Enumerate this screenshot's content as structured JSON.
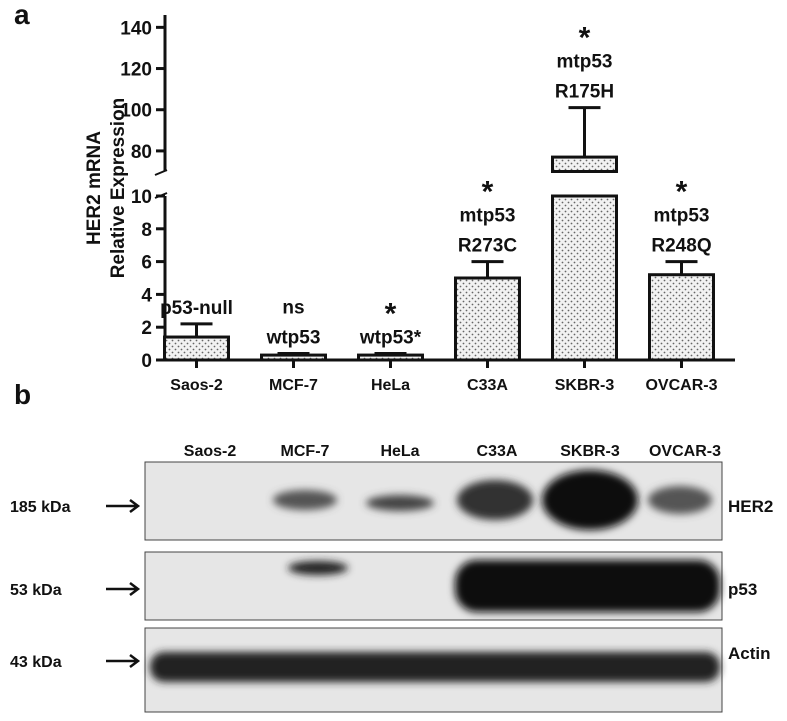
{
  "chart_data": {
    "type": "bar",
    "panel": "a",
    "ylabel": [
      "HER2 mRNA",
      "Relative Expression"
    ],
    "categories": [
      "Saos-2",
      "MCF-7",
      "HeLa",
      "C33A",
      "SKBR-3",
      "OVCAR-3"
    ],
    "values": [
      1.4,
      0.3,
      0.3,
      5.0,
      77,
      5.2
    ],
    "errors": [
      0.8,
      0.1,
      0.1,
      1.0,
      24,
      0.8
    ],
    "annotations": [
      [
        "p53-null"
      ],
      [
        "ns",
        "wtp53"
      ],
      [
        "*",
        "wtp53*"
      ],
      [
        "*",
        "mtp53",
        "R273C"
      ],
      [
        "*",
        "mtp53",
        "R175H"
      ],
      [
        "*",
        "mtp53",
        "R248Q"
      ]
    ],
    "y_segments": [
      {
        "ylim": [
          0,
          10
        ],
        "yticks": [
          0,
          2,
          4,
          6,
          8,
          10
        ]
      },
      {
        "ylim": [
          70,
          146
        ],
        "yticks": [
          80,
          100,
          120,
          140
        ]
      }
    ]
  },
  "blot": {
    "panel": "b",
    "lanes": [
      "Saos-2",
      "MCF-7",
      "HeLa",
      "C33A",
      "SKBR-3",
      "OVCAR-3"
    ],
    "rows": [
      {
        "size": "185 kDa",
        "protein": "HER2"
      },
      {
        "size": "53 kDa",
        "protein": "p53"
      },
      {
        "size": "43 kDa",
        "protein": "Actin"
      }
    ]
  }
}
